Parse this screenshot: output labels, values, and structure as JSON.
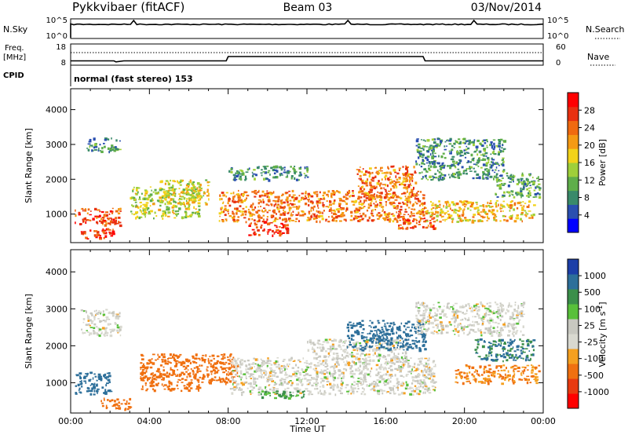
{
  "header": {
    "station": "Pykkvibaer (fitACF)",
    "beam": "Beam 03",
    "date": "03/Nov/2014"
  },
  "nsky_panel": {
    "left_label": "N.Sky",
    "right_label": "N.Search",
    "left_ticks": [
      "10^5",
      "10^0"
    ],
    "right_ticks": [
      "10^5",
      "10^0"
    ]
  },
  "freq_panel": {
    "left_label_line1": "Freq.",
    "left_label_line2": "[MHz]",
    "right_label": "Nave",
    "left_ticks": [
      "18",
      "8"
    ],
    "right_ticks": [
      "60",
      "0"
    ]
  },
  "cpid_panel": {
    "label": "CPID",
    "text": "normal (fast stereo) 153"
  },
  "power_panel": {
    "ylabel": "Slant Range [km]",
    "y_ticks": [
      "4000",
      "3000",
      "2000",
      "1000"
    ],
    "colorbar_label": "Power [dB]",
    "colorbar_ticks": [
      "28",
      "24",
      "20",
      "16",
      "12",
      "8",
      "4"
    ]
  },
  "velocity_panel": {
    "ylabel": "Slant Range [km]",
    "y_ticks": [
      "4000",
      "3000",
      "2000",
      "1000"
    ],
    "colorbar_label": "Velocity [m s",
    "colorbar_label_sup": "-1",
    "colorbar_label_close": "]",
    "colorbar_ticks": [
      "1000",
      "500",
      "100",
      "25",
      "-25",
      "-100",
      "-500",
      "-1000"
    ]
  },
  "time_axis": {
    "label": "Time UT",
    "ticks": [
      "00:00",
      "04:00",
      "08:00",
      "12:00",
      "16:00",
      "20:00",
      "00:00"
    ]
  },
  "colors": {
    "power_scale": [
      "#0000ff",
      "#2a4fb0",
      "#3a8a6a",
      "#5fae4a",
      "#9fcf3a",
      "#f2d21a",
      "#f59a14",
      "#f06a10",
      "#e83010",
      "#ff0000"
    ],
    "velocity_scale": [
      "#1c3fa8",
      "#2d6f9a",
      "#3b8f4a",
      "#58c03a",
      "#c8c8c0",
      "#d9d9d0",
      "#f5a020",
      "#f07010",
      "#e83a10",
      "#ff0000"
    ]
  },
  "chart_data": [
    {
      "type": "line",
      "x_unit": "hours UT",
      "xlim": [
        0,
        24
      ],
      "series": [
        {
          "name": "N.Sky",
          "note": "near-constant high level",
          "x": [
            0,
            24
          ],
          "y_scale": "log"
        },
        {
          "name": "Freq.",
          "x": [
            0,
            2.2,
            2.3,
            2.7,
            7.9,
            8.0,
            17.9,
            18.0,
            24
          ],
          "y": [
            9.5,
            9.5,
            9.0,
            9.5,
            9.5,
            11.5,
            11.5,
            9.5,
            9.5
          ]
        },
        {
          "name": "Nave",
          "x": [
            0,
            24
          ],
          "y": [
            37,
            37
          ]
        }
      ]
    },
    {
      "type": "heatmap",
      "quantity": "Power",
      "unit": "dB",
      "x_unit": "hours UT",
      "xlim": [
        0,
        24
      ],
      "y_unit": "km",
      "ylim": [
        180,
        4600
      ],
      "clim": [
        0,
        30
      ],
      "regions": [
        {
          "x": [
            0.2,
            2.5
          ],
          "y": [
            700,
            1200
          ],
          "value": 24
        },
        {
          "x": [
            0.5,
            2.2
          ],
          "y": [
            300,
            600
          ],
          "value": 26
        },
        {
          "x": [
            0.8,
            2.5
          ],
          "y": [
            2800,
            3200
          ],
          "value": 8
        },
        {
          "x": [
            3.0,
            6.5
          ],
          "y": [
            900,
            1800
          ],
          "value": 14
        },
        {
          "x": [
            4.5,
            7.0
          ],
          "y": [
            1300,
            2000
          ],
          "value": 16
        },
        {
          "x": [
            7.5,
            18.0
          ],
          "y": [
            800,
            1700
          ],
          "value": 22
        },
        {
          "x": [
            8.0,
            12.0
          ],
          "y": [
            2000,
            2400
          ],
          "value": 8
        },
        {
          "x": [
            9.0,
            11.0
          ],
          "y": [
            400,
            800
          ],
          "value": 26
        },
        {
          "x": [
            14.5,
            17.5
          ],
          "y": [
            1500,
            2400
          ],
          "value": 22
        },
        {
          "x": [
            16.5,
            18.5
          ],
          "y": [
            600,
            900
          ],
          "value": 24
        },
        {
          "x": [
            17.5,
            22.0
          ],
          "y": [
            2000,
            3200
          ],
          "value": 8
        },
        {
          "x": [
            18.0,
            23.5
          ],
          "y": [
            800,
            1400
          ],
          "value": 18
        },
        {
          "x": [
            21.5,
            23.8
          ],
          "y": [
            1500,
            2200
          ],
          "value": 10
        }
      ]
    },
    {
      "type": "heatmap",
      "quantity": "Velocity",
      "unit": "m s^-1",
      "x_unit": "hours UT",
      "xlim": [
        0,
        24
      ],
      "y_unit": "km",
      "ylim": [
        180,
        4600
      ],
      "clim": [
        -1000,
        1000
      ],
      "regions": [
        {
          "x": [
            0.2,
            2.0
          ],
          "y": [
            700,
            1300
          ],
          "value": 400
        },
        {
          "x": [
            0.5,
            2.5
          ],
          "y": [
            2300,
            3000
          ],
          "value": 0
        },
        {
          "x": [
            1.5,
            3.0
          ],
          "y": [
            300,
            600
          ],
          "value": -150
        },
        {
          "x": [
            3.5,
            6.5
          ],
          "y": [
            800,
            1800
          ],
          "value": -300
        },
        {
          "x": [
            6.5,
            8.5
          ],
          "y": [
            1000,
            1800
          ],
          "value": -150
        },
        {
          "x": [
            8.0,
            18.5
          ],
          "y": [
            700,
            1700
          ],
          "value": 0
        },
        {
          "x": [
            12.0,
            17.0
          ],
          "y": [
            1700,
            2200
          ],
          "value": 0
        },
        {
          "x": [
            9.5,
            12.0
          ],
          "y": [
            600,
            800
          ],
          "value": 60
        },
        {
          "x": [
            14.0,
            18.0
          ],
          "y": [
            1900,
            2700
          ],
          "value": 150
        },
        {
          "x": [
            17.5,
            23.0
          ],
          "y": [
            2300,
            3200
          ],
          "value": 0
        },
        {
          "x": [
            19.5,
            23.8
          ],
          "y": [
            1000,
            1500
          ],
          "value": -100
        },
        {
          "x": [
            20.5,
            23.5
          ],
          "y": [
            1600,
            2200
          ],
          "value": 100
        }
      ]
    }
  ]
}
